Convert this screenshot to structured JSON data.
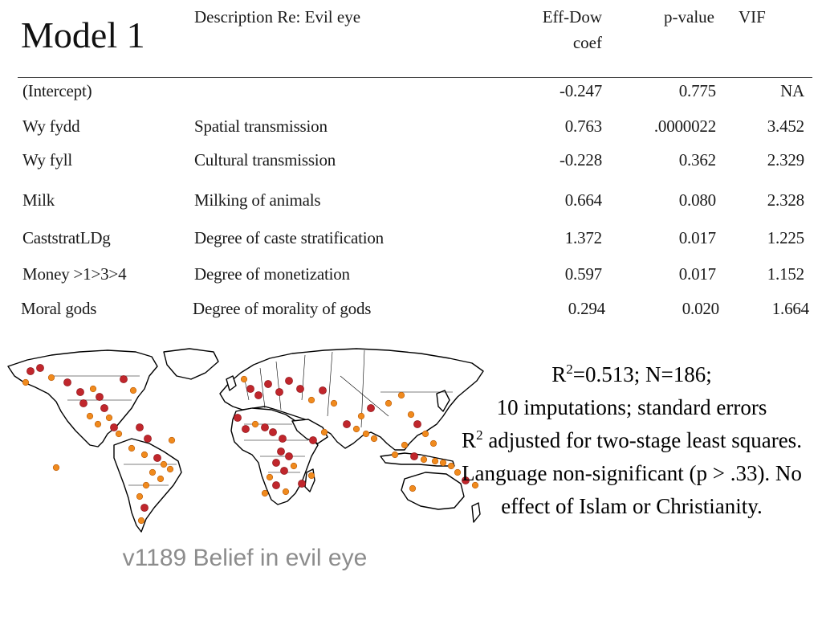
{
  "table": {
    "title": "Model 1",
    "headers": {
      "description": "Description Re: Evil eye",
      "coef_line1": "Eff-Dow",
      "coef_line2": "coef",
      "pvalue": "p-value",
      "vif": "VIF"
    },
    "rows": [
      {
        "var": "(Intercept)",
        "desc": "",
        "coef": "-0.247",
        "p": "0.775",
        "vif": "NA"
      },
      {
        "var": "Wy fydd",
        "desc": "Spatial transmission",
        "coef": "0.763",
        "p": ".0000022",
        "vif": "3.452"
      },
      {
        "var": "Wy fyll",
        "desc": "Cultural transmission",
        "coef": "-0.228",
        "p": "0.362",
        "vif": "2.329"
      },
      {
        "var": "Milk",
        "desc": "Milking of animals",
        "coef": "0.664",
        "p": "0.080",
        "vif": "2.328"
      },
      {
        "var": "CaststratLDg",
        "desc": "Degree of caste stratification",
        "coef": "1.372",
        "p": "0.017",
        "vif": "1.225"
      },
      {
        "var": "Money >1>3>4",
        "desc": "Degree of monetization",
        "coef": "0.597",
        "p": "0.017",
        "vif": "1.152"
      },
      {
        "var": "Moral gods",
        "desc": "Degree of morality of gods",
        "coef": "0.294",
        "p": "0.020",
        "vif": "1.664"
      }
    ]
  },
  "map": {
    "caption": "v1189 Belief in evil eye",
    "colors": {
      "present": "#c0262c",
      "absent": "#f08a1d",
      "outline": "#000000"
    }
  },
  "note": {
    "r2_label": "R",
    "r2_sup": "2",
    "r2_rest": "=0.513; N=186;",
    "line2": "10 imputations; standard errors",
    "r2b_label": "R",
    "r2b_sup": "2",
    "line3_rest": " adjusted for two-stage least squares. Language non-significant (p > .33). No effect of Islam or Christianity."
  }
}
